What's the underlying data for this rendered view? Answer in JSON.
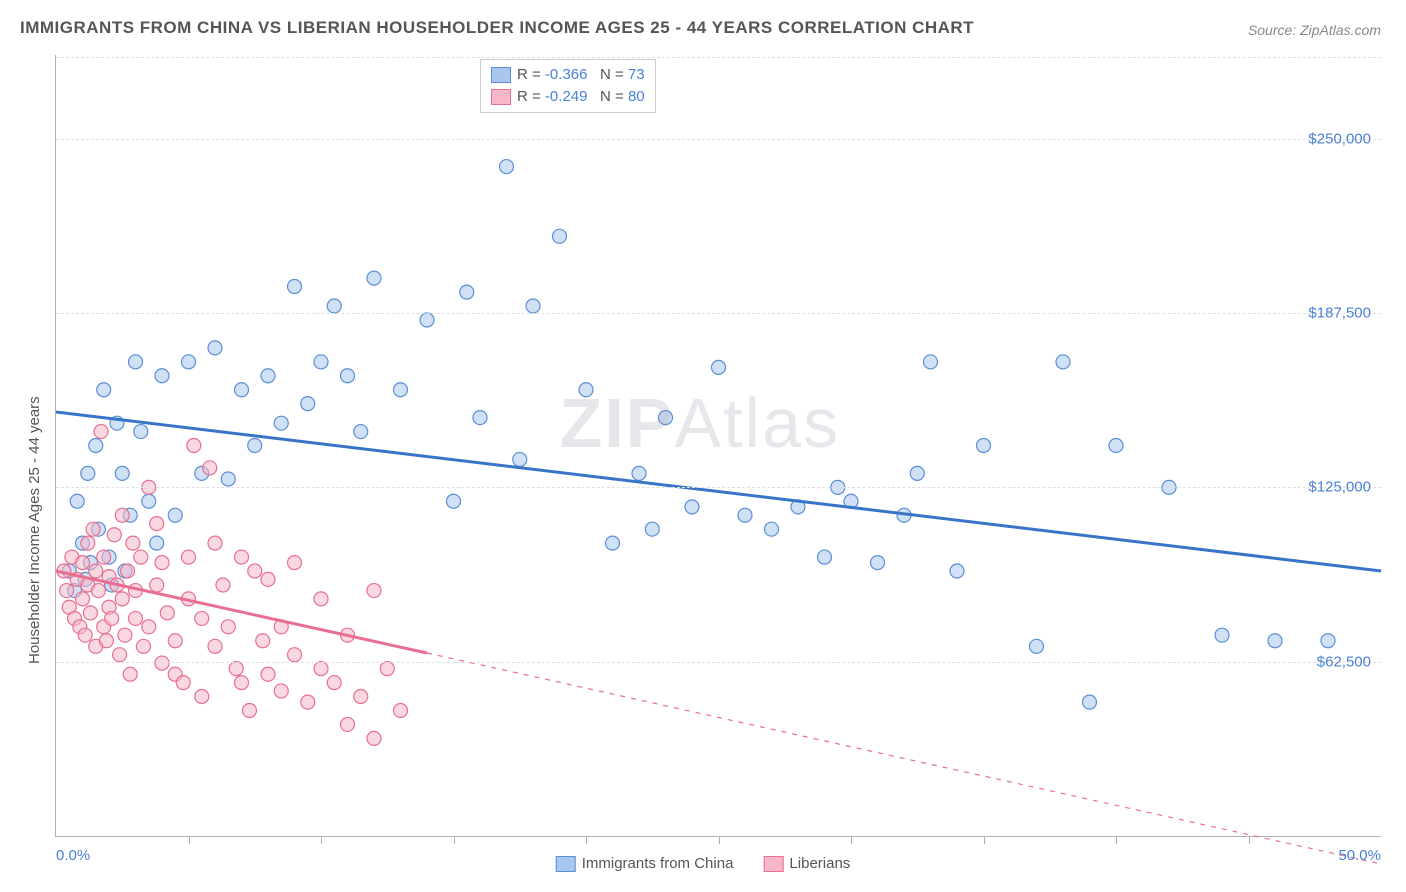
{
  "title": "IMMIGRANTS FROM CHINA VS LIBERIAN HOUSEHOLDER INCOME AGES 25 - 44 YEARS CORRELATION CHART",
  "source": "Source: ZipAtlas.com",
  "watermark": "ZIPAtlas",
  "chart": {
    "type": "scatter",
    "ylabel": "Householder Income Ages 25 - 44 years",
    "xlim": [
      0,
      50
    ],
    "ylim": [
      0,
      280000
    ],
    "xtick_positions_pct": [
      10,
      20,
      30,
      40,
      50,
      60,
      70,
      80,
      90
    ],
    "x_axis_labels": {
      "start": "0.0%",
      "end": "50.0%"
    },
    "y_ticks": [
      {
        "value": 62500,
        "label": "$62,500"
      },
      {
        "value": 125000,
        "label": "$125,000"
      },
      {
        "value": 187500,
        "label": "$187,500"
      },
      {
        "value": 250000,
        "label": "$250,000"
      }
    ],
    "grid_color": "#e0e0e0",
    "axis_color": "#b0b0b0",
    "background_color": "#ffffff",
    "marker_radius": 7,
    "marker_opacity": 0.55,
    "trend_line_width": 3,
    "series": [
      {
        "name": "Immigrants from China",
        "color_fill": "#a9c6ec",
        "color_stroke": "#5b8fd6",
        "line_color": "#3874c8",
        "R": "-0.366",
        "N": "73",
        "trend": {
          "x1": 0,
          "y1": 152000,
          "x2": 50,
          "y2": 95000,
          "dash_after_x": null
        },
        "points": [
          [
            0.5,
            95000
          ],
          [
            0.7,
            88000
          ],
          [
            0.8,
            120000
          ],
          [
            1.0,
            105000
          ],
          [
            1.1,
            92000
          ],
          [
            1.2,
            130000
          ],
          [
            1.3,
            98000
          ],
          [
            1.5,
            140000
          ],
          [
            1.6,
            110000
          ],
          [
            1.8,
            160000
          ],
          [
            2.0,
            100000
          ],
          [
            2.1,
            90000
          ],
          [
            2.3,
            148000
          ],
          [
            2.5,
            130000
          ],
          [
            2.6,
            95000
          ],
          [
            2.8,
            115000
          ],
          [
            3.0,
            170000
          ],
          [
            3.2,
            145000
          ],
          [
            3.5,
            120000
          ],
          [
            3.8,
            105000
          ],
          [
            4.0,
            165000
          ],
          [
            4.5,
            115000
          ],
          [
            5.0,
            170000
          ],
          [
            5.5,
            130000
          ],
          [
            6.0,
            175000
          ],
          [
            6.5,
            128000
          ],
          [
            7.0,
            160000
          ],
          [
            7.5,
            140000
          ],
          [
            8.0,
            165000
          ],
          [
            8.5,
            148000
          ],
          [
            9.0,
            197000
          ],
          [
            9.5,
            155000
          ],
          [
            10.0,
            170000
          ],
          [
            10.5,
            190000
          ],
          [
            11.0,
            165000
          ],
          [
            11.5,
            145000
          ],
          [
            12.0,
            200000
          ],
          [
            13.0,
            160000
          ],
          [
            14.0,
            185000
          ],
          [
            15.0,
            120000
          ],
          [
            15.5,
            195000
          ],
          [
            16.0,
            150000
          ],
          [
            17.0,
            240000
          ],
          [
            17.5,
            135000
          ],
          [
            18.0,
            190000
          ],
          [
            19.0,
            215000
          ],
          [
            20.0,
            160000
          ],
          [
            21.0,
            105000
          ],
          [
            22.0,
            130000
          ],
          [
            22.5,
            110000
          ],
          [
            23.0,
            150000
          ],
          [
            24.0,
            118000
          ],
          [
            25.0,
            168000
          ],
          [
            26.0,
            115000
          ],
          [
            27.0,
            110000
          ],
          [
            28.0,
            118000
          ],
          [
            29.0,
            100000
          ],
          [
            29.5,
            125000
          ],
          [
            30.0,
            120000
          ],
          [
            31.0,
            98000
          ],
          [
            32.0,
            115000
          ],
          [
            33.0,
            170000
          ],
          [
            34.0,
            95000
          ],
          [
            35.0,
            140000
          ],
          [
            37.0,
            68000
          ],
          [
            38.0,
            170000
          ],
          [
            39.0,
            48000
          ],
          [
            40.0,
            140000
          ],
          [
            42.0,
            125000
          ],
          [
            44.0,
            72000
          ],
          [
            46.0,
            70000
          ],
          [
            48.0,
            70000
          ],
          [
            32.5,
            130000
          ]
        ]
      },
      {
        "name": "Liberians",
        "color_fill": "#f6b8c8",
        "color_stroke": "#e86f91",
        "line_color": "#e86f91",
        "R": "-0.249",
        "N": "80",
        "trend": {
          "x1": 0,
          "y1": 95000,
          "x2": 50,
          "y2": -10000,
          "dash_after_x": 14
        },
        "points": [
          [
            0.3,
            95000
          ],
          [
            0.4,
            88000
          ],
          [
            0.5,
            82000
          ],
          [
            0.6,
            100000
          ],
          [
            0.7,
            78000
          ],
          [
            0.8,
            92000
          ],
          [
            0.9,
            75000
          ],
          [
            1.0,
            98000
          ],
          [
            1.0,
            85000
          ],
          [
            1.1,
            72000
          ],
          [
            1.2,
            105000
          ],
          [
            1.2,
            90000
          ],
          [
            1.3,
            80000
          ],
          [
            1.4,
            110000
          ],
          [
            1.5,
            68000
          ],
          [
            1.5,
            95000
          ],
          [
            1.6,
            88000
          ],
          [
            1.7,
            145000
          ],
          [
            1.8,
            75000
          ],
          [
            1.8,
            100000
          ],
          [
            1.9,
            70000
          ],
          [
            2.0,
            93000
          ],
          [
            2.0,
            82000
          ],
          [
            2.1,
            78000
          ],
          [
            2.2,
            108000
          ],
          [
            2.3,
            90000
          ],
          [
            2.4,
            65000
          ],
          [
            2.5,
            115000
          ],
          [
            2.5,
            85000
          ],
          [
            2.6,
            72000
          ],
          [
            2.7,
            95000
          ],
          [
            2.8,
            58000
          ],
          [
            2.9,
            105000
          ],
          [
            3.0,
            88000
          ],
          [
            3.0,
            78000
          ],
          [
            3.2,
            100000
          ],
          [
            3.3,
            68000
          ],
          [
            3.5,
            125000
          ],
          [
            3.5,
            75000
          ],
          [
            3.8,
            112000
          ],
          [
            3.8,
            90000
          ],
          [
            4.0,
            62000
          ],
          [
            4.0,
            98000
          ],
          [
            4.2,
            80000
          ],
          [
            4.5,
            58000
          ],
          [
            4.5,
            70000
          ],
          [
            4.8,
            55000
          ],
          [
            5.0,
            100000
          ],
          [
            5.0,
            85000
          ],
          [
            5.2,
            140000
          ],
          [
            5.5,
            50000
          ],
          [
            5.5,
            78000
          ],
          [
            5.8,
            132000
          ],
          [
            6.0,
            105000
          ],
          [
            6.0,
            68000
          ],
          [
            6.3,
            90000
          ],
          [
            6.5,
            75000
          ],
          [
            6.8,
            60000
          ],
          [
            7.0,
            55000
          ],
          [
            7.0,
            100000
          ],
          [
            7.3,
            45000
          ],
          [
            7.5,
            95000
          ],
          [
            7.8,
            70000
          ],
          [
            8.0,
            58000
          ],
          [
            8.0,
            92000
          ],
          [
            8.5,
            75000
          ],
          [
            8.5,
            52000
          ],
          [
            9.0,
            98000
          ],
          [
            9.0,
            65000
          ],
          [
            9.5,
            48000
          ],
          [
            10.0,
            85000
          ],
          [
            10.0,
            60000
          ],
          [
            10.5,
            55000
          ],
          [
            11.0,
            40000
          ],
          [
            11.0,
            72000
          ],
          [
            11.5,
            50000
          ],
          [
            12.0,
            88000
          ],
          [
            12.0,
            35000
          ],
          [
            12.5,
            60000
          ],
          [
            13.0,
            45000
          ]
        ]
      }
    ]
  },
  "legend_top": {
    "R_label": "R =",
    "N_label": "N =",
    "label_color": "#555555",
    "value_color": "#4a7fd8"
  },
  "legend_bottom": {
    "items": [
      "Immigrants from China",
      "Liberians"
    ]
  }
}
